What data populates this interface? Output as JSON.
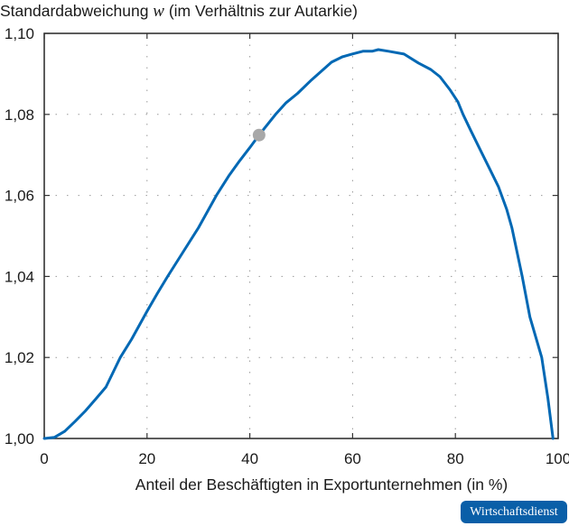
{
  "title": {
    "prefix": "Standardabweichung ",
    "variable": "w",
    "suffix": " (im Verhältnis zur Autarkie)"
  },
  "badge": {
    "label": "Wirtschaftsdienst",
    "color": "#0a5fa8"
  },
  "colors": {
    "line": "#0068b4",
    "marker": "#a8a8a8",
    "grid": "#9a9a9a",
    "axis": "#333333"
  },
  "chart_data": {
    "type": "line",
    "title": "Standardabweichung w (im Verhältnis zur Autarkie)",
    "xlabel": "Anteil der Beschäftigten in Exportunternehmen (in %)",
    "ylabel": "Standardabweichung w (im Verhältnis zur Autarkie)",
    "xlim": [
      0,
      100
    ],
    "ylim": [
      1.0,
      1.1
    ],
    "xticks": [
      0,
      20,
      40,
      60,
      80,
      100
    ],
    "xtick_labels": [
      "0",
      "20",
      "40",
      "60",
      "80",
      "100"
    ],
    "yticks": [
      1.0,
      1.02,
      1.04,
      1.06,
      1.08,
      1.1
    ],
    "ytick_labels": [
      "1,00",
      "1,02",
      "1,04",
      "1,06",
      "1,08",
      "1,10"
    ],
    "grid": true,
    "legend": null,
    "series": [
      {
        "name": "Standardabweichung w",
        "x": [
          0,
          2,
          4,
          6,
          8,
          10,
          12,
          14.8,
          17,
          20,
          22,
          24,
          27,
          30,
          33.5,
          36,
          38,
          40,
          41.8,
          45,
          47,
          49.3,
          52,
          55.9,
          58,
          59.9,
          62,
          63.8,
          65,
          67,
          70,
          72.8,
          75.2,
          77,
          79,
          80.5,
          81.5,
          83,
          84.9,
          86.5,
          88.4,
          90,
          91,
          93,
          94.5,
          96.8,
          98,
          99
        ],
        "y": [
          1.0,
          1.0003,
          1.0018,
          1.0042,
          1.0068,
          1.0097,
          1.0127,
          1.02,
          1.0245,
          1.0314,
          1.0358,
          1.04,
          1.046,
          1.052,
          1.06,
          1.065,
          1.0685,
          1.0718,
          1.0749,
          1.08,
          1.0828,
          1.0852,
          1.0885,
          1.0929,
          1.0942,
          1.0949,
          1.0956,
          1.0956,
          1.096,
          1.0956,
          1.0949,
          1.0927,
          1.0911,
          1.0893,
          1.086,
          1.0831,
          1.08,
          1.076,
          1.0711,
          1.067,
          1.0621,
          1.0565,
          1.052,
          1.04,
          1.03,
          1.02,
          1.01,
          1.0
        ]
      }
    ],
    "annotations": [
      {
        "type": "marker",
        "x": 41.8,
        "y": 1.0749,
        "color": "#a8a8a8",
        "label": ""
      }
    ]
  }
}
